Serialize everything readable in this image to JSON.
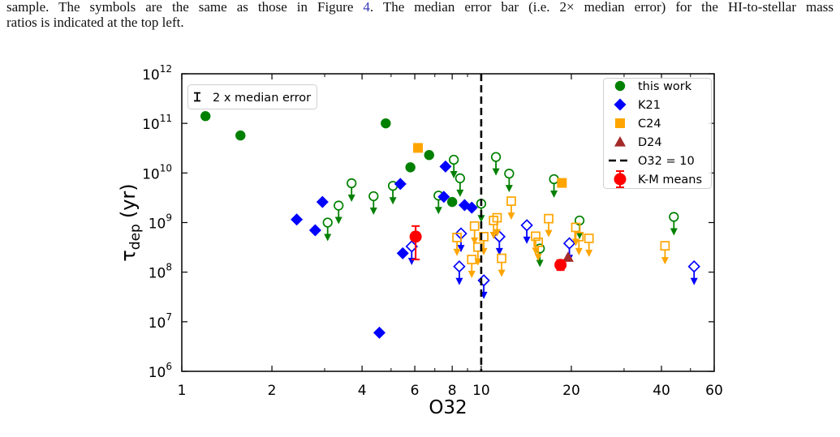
{
  "caption": {
    "line1_start": "sample. The symbols are the same as those in Figure ",
    "figure_ref": "4",
    "line1_end": ". The median error bar (i.e. 2× median error) for the HI-to-stellar mass",
    "line2": "ratios is indicated at the top left."
  },
  "colors": {
    "text": "#111111",
    "link": "#3535b5",
    "axes": "#000000",
    "legend_border": "#d0d0d0"
  },
  "chart_data": {
    "type": "scatter",
    "xlabel": "O32",
    "ylabel": {
      "symbol": "τ",
      "subscript": "dep",
      "unit": "(yr)"
    },
    "xscale": "log",
    "yscale": "log",
    "xlim": [
      1,
      60
    ],
    "ylim": [
      1000000.0,
      1000000000000.0
    ],
    "xticks": [
      1,
      2,
      4,
      6,
      8,
      10,
      20,
      40,
      60
    ],
    "xtick_labels": [
      "1",
      "2",
      "4",
      "6",
      "8",
      "10",
      "20",
      "40",
      "60"
    ],
    "yticks": [
      1000000000000.0,
      100000000000.0,
      10000000000.0,
      1000000000.0,
      100000000.0,
      10000000.0,
      1000000.0
    ],
    "ytick_labels": [
      {
        "base": "10",
        "exp": "12"
      },
      {
        "base": "10",
        "exp": "11"
      },
      {
        "base": "10",
        "exp": "10"
      },
      {
        "base": "10",
        "exp": "9"
      },
      {
        "base": "10",
        "exp": "8"
      },
      {
        "base": "10",
        "exp": "7"
      },
      {
        "base": "10",
        "exp": "6"
      }
    ],
    "grid": false,
    "legend": {
      "position": "top-right"
    },
    "median_error_bar": {
      "label": "2 x median error",
      "position": "top-left",
      "length_dex": 0.16
    },
    "series": [
      {
        "name": "this work",
        "marker": "circle",
        "color": "#008000",
        "points": [
          {
            "x": 1.2,
            "y": 140000000000.0
          },
          {
            "x": 1.57,
            "y": 57000000000.0
          },
          {
            "x": 4.8,
            "y": 100000000000.0
          },
          {
            "x": 5.8,
            "y": 13000000000.0
          },
          {
            "x": 6.7,
            "y": 23000000000.0
          },
          {
            "x": 8.0,
            "y": 2600000000.0
          }
        ],
        "upper_limits": [
          {
            "x": 3.07,
            "y": 1000000000.0
          },
          {
            "x": 3.34,
            "y": 2200000000.0
          },
          {
            "x": 3.69,
            "y": 6200000000.0
          },
          {
            "x": 4.37,
            "y": 3400000000.0
          },
          {
            "x": 5.07,
            "y": 5500000000.0
          },
          {
            "x": 7.2,
            "y": 3500000000.0
          },
          {
            "x": 8.1,
            "y": 18500000000.0
          },
          {
            "x": 8.5,
            "y": 7800000000.0
          },
          {
            "x": 10.0,
            "y": 2400000000.0
          },
          {
            "x": 11.2,
            "y": 21000000000.0
          },
          {
            "x": 12.4,
            "y": 9700000000.0
          },
          {
            "x": 15.7,
            "y": 300000000.0
          },
          {
            "x": 17.5,
            "y": 7500000000.0
          },
          {
            "x": 21.3,
            "y": 1100000000.0
          },
          {
            "x": 44.0,
            "y": 1300000000.0
          }
        ]
      },
      {
        "name": "K21",
        "marker": "diamond",
        "color": "#0000ff",
        "points": [
          {
            "x": 2.42,
            "y": 1150000000.0
          },
          {
            "x": 2.79,
            "y": 700000000.0
          },
          {
            "x": 2.95,
            "y": 2600000000.0
          },
          {
            "x": 4.57,
            "y": 6000000.0
          },
          {
            "x": 5.37,
            "y": 6000000000.0
          },
          {
            "x": 5.47,
            "y": 240000000.0
          },
          {
            "x": 7.5,
            "y": 3300000000.0
          },
          {
            "x": 7.6,
            "y": 13500000000.0
          },
          {
            "x": 8.8,
            "y": 2250000000.0
          },
          {
            "x": 9.3,
            "y": 2000000000.0
          }
        ],
        "upper_limits": [
          {
            "x": 5.86,
            "y": 330000000.0
          },
          {
            "x": 8.45,
            "y": 130000000.0
          },
          {
            "x": 8.56,
            "y": 600000000.0
          },
          {
            "x": 10.2,
            "y": 68000000.0
          },
          {
            "x": 11.5,
            "y": 520000000.0
          },
          {
            "x": 14.2,
            "y": 880000000.0
          },
          {
            "x": 19.7,
            "y": 380000000.0
          },
          {
            "x": 51.4,
            "y": 130000000.0
          }
        ]
      },
      {
        "name": "C24",
        "marker": "square",
        "color": "#ffa500",
        "points": [
          {
            "x": 6.15,
            "y": 32000000000.0
          },
          {
            "x": 18.6,
            "y": 6300000000.0
          }
        ],
        "upper_limits": [
          {
            "x": 8.3,
            "y": 500000000.0
          },
          {
            "x": 9.3,
            "y": 180000000.0
          },
          {
            "x": 9.5,
            "y": 850000000.0
          },
          {
            "x": 9.75,
            "y": 320000000.0
          },
          {
            "x": 10.2,
            "y": 520000000.0
          },
          {
            "x": 11.0,
            "y": 1100000000.0
          },
          {
            "x": 11.3,
            "y": 1250000000.0
          },
          {
            "x": 11.7,
            "y": 190000000.0
          },
          {
            "x": 12.6,
            "y": 2700000000.0
          },
          {
            "x": 15.2,
            "y": 530000000.0
          },
          {
            "x": 15.5,
            "y": 400000000.0
          },
          {
            "x": 16.8,
            "y": 1200000000.0
          },
          {
            "x": 20.7,
            "y": 800000000.0
          },
          {
            "x": 21.2,
            "y": 520000000.0
          },
          {
            "x": 22.9,
            "y": 480000000.0
          },
          {
            "x": 41.1,
            "y": 340000000.0
          }
        ]
      },
      {
        "name": "D24",
        "marker": "triangle",
        "color": "#a52a2a",
        "points": [
          {
            "x": 19.5,
            "y": 200000000.0
          }
        ],
        "upper_limits": []
      },
      {
        "name": "O32 = 10",
        "marker": "vline",
        "color": "#000000",
        "style": "dashed",
        "x": 10
      },
      {
        "name": "K-M means",
        "marker": "circle_errorbar",
        "color": "#ff0000",
        "points": [
          {
            "x": 6.04,
            "y": 520000000.0,
            "y_low": 180000000.0,
            "y_high": 850000000.0
          },
          {
            "x": 18.4,
            "y": 140000000.0,
            "y_low": 110000000.0,
            "y_high": 175000000.0
          }
        ]
      }
    ]
  }
}
